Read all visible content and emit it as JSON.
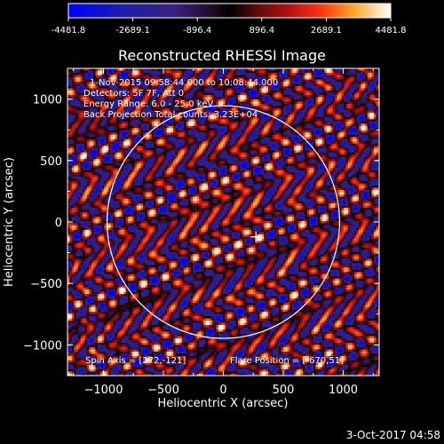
{
  "chart_data": {
    "type": "heatmap",
    "title": "Reconstructed RHESSI Image",
    "xlabel": "Heliocentric X (arcsec)",
    "ylabel": "Heliocentric Y (arcsec)",
    "xlim": [
      -1300,
      1300
    ],
    "ylim": [
      -1250,
      1250
    ],
    "xticks": [
      -1000,
      -500,
      0,
      500,
      1000
    ],
    "yticks": [
      -1000,
      -500,
      0,
      500,
      1000
    ],
    "colorbar": {
      "min": -4481.8,
      "max": 4481.8,
      "tick_values": [
        -4481.8,
        -2689.1,
        -896.4,
        896.4,
        2689.1,
        4481.8
      ],
      "tick_labels": [
        "-4481.8",
        "-2689.1",
        "-896.4",
        "896.4",
        "2689.1",
        "4481.8"
      ]
    },
    "annotations": [
      "1-Nov-2015 09:58:44.000 to 10:08:44.000",
      "Detectors: 5F 7F, Att 0",
      "Energy Range: 6.0 - 25.0 keV",
      "Back Projection    Total counts: 3.23E+04"
    ],
    "spin_axis_label": "Spin Axis = [272,-121]",
    "flare_position_label": "Flare Position = [-670,51]",
    "spin_axis": [
      272,
      -121
    ],
    "solar_radius_arcsec": 970,
    "grid": false
  },
  "footer": {
    "timestamp": "3-Oct-2017 04:58"
  }
}
